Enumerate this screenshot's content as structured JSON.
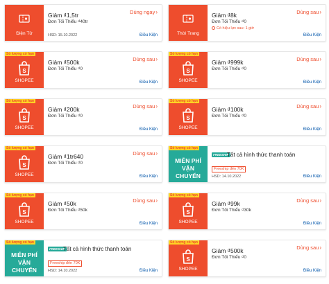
{
  "limit_tag": "Số lượng có hạn",
  "use_later": "Dùng sau",
  "use_now": "Dùng ngay",
  "conditions": "Điều Kiện",
  "vouchers": [
    {
      "id": "v1",
      "style": "orange",
      "icon": "coupon-icon",
      "stub_label": "Điện Tử",
      "title": "Giảm ₫1,5tr",
      "sub": "Đơn Tối Thiểu ₫40tr",
      "action": "use_now",
      "hsd": "HSD: 15.10.2022",
      "note": ""
    },
    {
      "id": "v2",
      "style": "orange",
      "icon": "coupon-icon",
      "stub_label": "Thời Trang",
      "title": "Giảm ₫8k",
      "sub": "Đơn Tối Thiểu ₫0",
      "action": "use_later",
      "hsd": "",
      "note": "Có hiệu lực sau: 1 giờ"
    },
    {
      "id": "v3",
      "style": "orange",
      "icon": "shopee-bag-icon",
      "stub_label": "SHOPEE",
      "title": "Giảm ₫500k",
      "sub": "Đơn Tối Thiểu ₫0",
      "action": "use_later",
      "hsd": "",
      "note": "",
      "tag": true
    },
    {
      "id": "v4",
      "style": "orange",
      "icon": "shopee-bag-icon",
      "stub_label": "SHOPEE",
      "title": "Giảm ₫999k",
      "sub": "Đơn Tối Thiểu ₫0",
      "action": "use_later",
      "hsd": "",
      "note": "",
      "tag": true
    },
    {
      "id": "v5",
      "style": "orange",
      "icon": "shopee-bag-icon",
      "stub_label": "SHOPEE",
      "title": "Giảm ₫200k",
      "sub": "Đơn Tối Thiểu ₫0",
      "action": "use_later",
      "hsd": "",
      "note": "",
      "tag": true
    },
    {
      "id": "v6",
      "style": "orange",
      "icon": "shopee-bag-icon",
      "stub_label": "SHOPEE",
      "title": "Giảm ₫100k",
      "sub": "Đơn Tối Thiểu ₫0",
      "action": "use_later",
      "hsd": "",
      "note": "",
      "tag": true
    },
    {
      "id": "v7",
      "style": "orange",
      "icon": "shopee-bag-icon",
      "stub_label": "SHOPEE",
      "title": "Giảm ₫1tr640",
      "sub": "Đơn Tối Thiểu ₫0",
      "action": "use_later",
      "hsd": "",
      "note": "",
      "tag": true
    },
    {
      "id": "v8",
      "style": "teal",
      "icon": "",
      "stub_label": "MIỄN PHÍ VẬN CHUYỂN",
      "title": "Tất cả hình thức thanh toán",
      "sub": "",
      "action": "",
      "hsd": "HSD: 14.10.2022",
      "note": "",
      "freeship": "Freeship đến 70K",
      "fs_logo": "FREESHIP",
      "tag": true
    },
    {
      "id": "v9",
      "style": "orange",
      "icon": "shopee-bag-icon",
      "stub_label": "SHOPEE",
      "title": "Giảm ₫50k",
      "sub": "Đơn Tối Thiểu ₫50k",
      "action": "use_later",
      "hsd": "",
      "note": "",
      "tag": true
    },
    {
      "id": "v10",
      "style": "orange",
      "icon": "shopee-bag-icon",
      "stub_label": "SHOPEE",
      "title": "Giảm ₫99k",
      "sub": "Đơn Tối Thiểu ₫30k",
      "action": "use_later",
      "hsd": "",
      "note": "",
      "tag": true
    },
    {
      "id": "v11",
      "style": "teal",
      "icon": "",
      "stub_label": "MIỄN PHÍ VẬN CHUYỂN",
      "title": "Tất cả hình thức thanh toán",
      "sub": "",
      "action": "",
      "hsd": "HSD: 14.10.2022",
      "note": "",
      "freeship": "Freeship đến 70K",
      "fs_logo": "FREESHIP",
      "tag": true
    },
    {
      "id": "v12",
      "style": "orange",
      "icon": "shopee-bag-icon",
      "stub_label": "SHOPEE",
      "title": "Giảm ₫500k",
      "sub": "Đơn Tối Thiểu ₫0",
      "action": "use_later",
      "hsd": "",
      "note": "",
      "tag": true
    }
  ],
  "colors": {
    "orange": "#ee4d2d",
    "teal": "#26aa99",
    "tag_yellow": "#ffd424",
    "link_blue": "#0055aa"
  }
}
